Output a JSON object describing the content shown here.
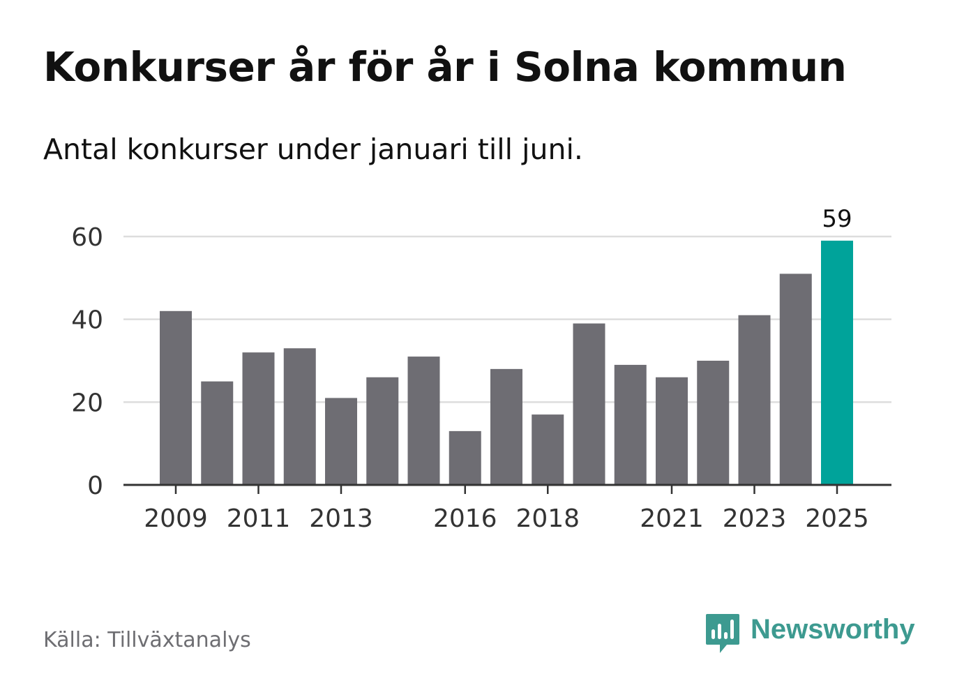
{
  "chart_data": {
    "type": "bar",
    "title": "Konkurser år för år i Solna kommun",
    "subtitle": "Antal konkurser under januari till juni.",
    "categories": [
      "2009",
      "2010",
      "2011",
      "2012",
      "2013",
      "2014",
      "2015",
      "2016",
      "2017",
      "2018",
      "2019",
      "2020",
      "2021",
      "2022",
      "2023",
      "2024",
      "2025"
    ],
    "values": [
      42,
      25,
      32,
      33,
      21,
      26,
      31,
      13,
      28,
      17,
      39,
      29,
      26,
      30,
      41,
      51,
      59
    ],
    "x_tick_labels": [
      "2009",
      "2011",
      "2013",
      "2016",
      "2018",
      "2021",
      "2023",
      "2025"
    ],
    "y_ticks": [
      0,
      20,
      40,
      60
    ],
    "ylim": [
      0,
      60
    ],
    "grid": true,
    "highlight": {
      "category": "2025",
      "label": "59",
      "color": "#00a39a"
    },
    "bar_color": "#6e6d73",
    "xlabel": "",
    "ylabel": ""
  },
  "source": "Källa: Tillväxtanalys",
  "brand": {
    "name": "Newsworthy",
    "icon": "newsworthy-logo-icon",
    "color": "#3d9a90"
  }
}
